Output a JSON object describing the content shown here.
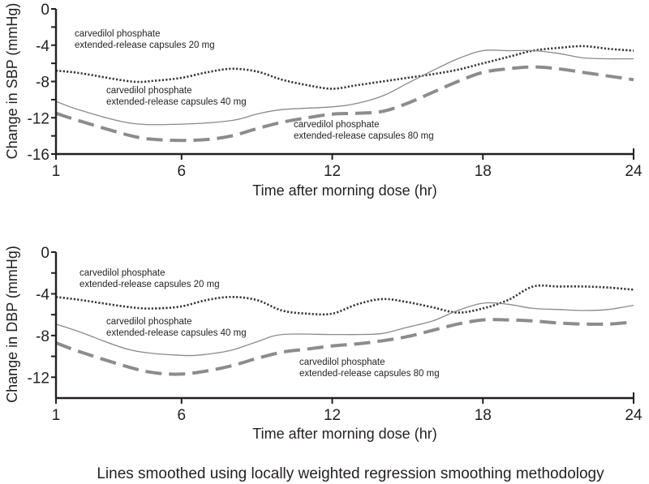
{
  "chart_data": [
    {
      "type": "line",
      "id": "sbp",
      "title": "",
      "xlabel": "Time after morning dose (hr)",
      "ylabel": "Change in SBP (mmHg)",
      "xlim": [
        1,
        24
      ],
      "ylim": [
        -16,
        0
      ],
      "xticks": [
        1,
        6,
        12,
        18,
        24
      ],
      "yticks": [
        0,
        -4,
        -8,
        -12,
        -16
      ],
      "yticks_minor": [
        -2,
        -6,
        -10,
        -14
      ],
      "grid": false,
      "series": [
        {
          "name": "carvedilol phosphate extended-release capsules 20 mg",
          "style": "dotted",
          "x": [
            1,
            2,
            4,
            5,
            6,
            7,
            8,
            9,
            10,
            11,
            12,
            13,
            14,
            15,
            16,
            17,
            18,
            19,
            20,
            21,
            22,
            23,
            24
          ],
          "y": [
            -6.8,
            -7.1,
            -8.0,
            -7.9,
            -7.6,
            -7.0,
            -6.6,
            -6.9,
            -7.8,
            -8.4,
            -8.8,
            -8.4,
            -8.0,
            -7.6,
            -7.2,
            -6.7,
            -6.0,
            -5.3,
            -4.6,
            -4.3,
            -4.1,
            -4.4,
            -4.6
          ]
        },
        {
          "name": "carvedilol phosphate extended-release capsules 40 mg",
          "style": "solid",
          "x": [
            1,
            2,
            4,
            6,
            8,
            9,
            10,
            12,
            13,
            14,
            15,
            16,
            17,
            18,
            19,
            20,
            21,
            22,
            23,
            24
          ],
          "y": [
            -10.2,
            -11.2,
            -12.6,
            -12.7,
            -12.3,
            -11.6,
            -11.1,
            -10.8,
            -10.4,
            -9.6,
            -8.2,
            -6.8,
            -5.5,
            -4.6,
            -4.6,
            -4.6,
            -4.9,
            -5.4,
            -5.5,
            -5.5
          ]
        },
        {
          "name": "carvedilol phosphate extended-release capsules 80 mg",
          "style": "dashed",
          "x": [
            1,
            2,
            4,
            5,
            6,
            7,
            8,
            9,
            10,
            11,
            12,
            13,
            14,
            15,
            16,
            17,
            18,
            19,
            20,
            21,
            22,
            23,
            24
          ],
          "y": [
            -11.5,
            -12.4,
            -14.0,
            -14.4,
            -14.5,
            -14.4,
            -14.0,
            -13.2,
            -12.5,
            -12.0,
            -11.6,
            -11.5,
            -11.3,
            -10.4,
            -9.2,
            -8.0,
            -7.0,
            -6.6,
            -6.4,
            -6.6,
            -7.0,
            -7.4,
            -7.8
          ]
        }
      ],
      "annotations": [
        {
          "text_line1": "carvedilol phosphate",
          "text_line2": "extended-release capsules 20 mg",
          "series": 0
        },
        {
          "text_line1": "carvedilol phosphate",
          "text_line2": "extended-release capsules 40 mg",
          "series": 1
        },
        {
          "text_line1": "carvedilol phosphate",
          "text_line2": "extended-release capsules 80 mg",
          "series": 2
        }
      ]
    },
    {
      "type": "line",
      "id": "dbp",
      "title": "",
      "xlabel": "Time after morning dose (hr)",
      "ylabel": "Change in DBP (mmHg)",
      "xlim": [
        1,
        24
      ],
      "ylim": [
        -14,
        0
      ],
      "xticks": [
        1,
        6,
        12,
        18,
        24
      ],
      "yticks": [
        0,
        -4,
        -8,
        -12
      ],
      "yticks_minor": [
        -2,
        -6,
        -10
      ],
      "grid": false,
      "series": [
        {
          "name": "carvedilol phosphate extended-release capsules 20 mg",
          "style": "dotted",
          "x": [
            1,
            2,
            4,
            5,
            6,
            7,
            8,
            9,
            10,
            11,
            12,
            13,
            14,
            15,
            16,
            17,
            18,
            19,
            20,
            21,
            22,
            23,
            24
          ],
          "y": [
            -4.3,
            -4.6,
            -5.3,
            -5.4,
            -5.2,
            -4.6,
            -4.3,
            -4.6,
            -5.6,
            -5.9,
            -5.9,
            -5.0,
            -4.5,
            -4.8,
            -5.3,
            -5.8,
            -5.4,
            -4.6,
            -3.3,
            -3.3,
            -3.3,
            -3.4,
            -3.6
          ]
        },
        {
          "name": "carvedilol phosphate extended-release capsules 40 mg",
          "style": "solid",
          "x": [
            1,
            2,
            4,
            6,
            7,
            8,
            9,
            10,
            12,
            13,
            14,
            15,
            16,
            17,
            18,
            19,
            20,
            21,
            22,
            23,
            24
          ],
          "y": [
            -6.9,
            -7.7,
            -9.4,
            -9.9,
            -9.8,
            -9.4,
            -8.6,
            -7.9,
            -7.9,
            -7.9,
            -7.8,
            -7.2,
            -6.6,
            -5.6,
            -4.9,
            -5.0,
            -5.4,
            -5.5,
            -5.6,
            -5.5,
            -5.1
          ]
        },
        {
          "name": "carvedilol phosphate extended-release capsules 80 mg",
          "style": "dashed",
          "x": [
            1,
            2,
            4,
            5,
            6,
            7,
            8,
            9,
            10,
            11,
            12,
            13,
            14,
            15,
            16,
            17,
            18,
            19,
            20,
            21,
            22,
            23,
            24
          ],
          "y": [
            -8.7,
            -9.6,
            -11.1,
            -11.6,
            -11.7,
            -11.4,
            -10.9,
            -10.2,
            -9.6,
            -9.3,
            -9.0,
            -8.8,
            -8.5,
            -8.1,
            -7.5,
            -6.9,
            -6.5,
            -6.5,
            -6.6,
            -6.8,
            -6.9,
            -6.9,
            -6.7
          ]
        }
      ],
      "annotations": [
        {
          "text_line1": "carvedilol phosphate",
          "text_line2": "extended-release capsules 20 mg",
          "series": 0
        },
        {
          "text_line1": "carvedilol phosphate",
          "text_line2": "extended-release capsules 40 mg",
          "series": 1
        },
        {
          "text_line1": "carvedilol phosphate",
          "text_line2": "extended-release capsules 80 mg",
          "series": 2
        }
      ]
    }
  ],
  "footnote": "Lines smoothed using locally weighted regression smoothing methodology",
  "colors": {
    "axis": "#231f20",
    "dotted_series": "#3a3536",
    "solid_series": "#8a8a8a",
    "dashed_series": "#8c8c8c",
    "text": "#231f20"
  }
}
